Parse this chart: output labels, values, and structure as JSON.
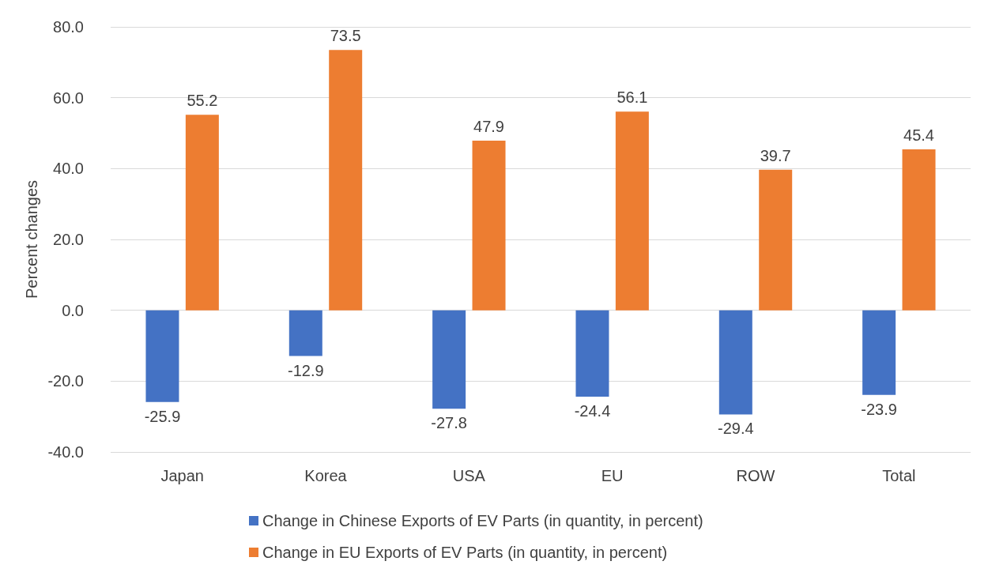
{
  "chart_data": {
    "type": "bar",
    "ylabel": "Percent changes",
    "categories": [
      "Japan",
      "Korea",
      "USA",
      "EU",
      "ROW",
      "Total"
    ],
    "series": [
      {
        "name": "Change in Chinese Exports of EV Parts (in quantity, in percent)",
        "color": "#4472c4",
        "values": [
          -25.9,
          -12.9,
          -27.8,
          -24.4,
          -29.4,
          -23.9
        ]
      },
      {
        "name": "Change in EU Exports of EV Parts (in quantity, in percent)",
        "color": "#ed7d31",
        "values": [
          55.2,
          73.5,
          47.9,
          56.1,
          39.7,
          45.4
        ]
      }
    ],
    "ylim": [
      -40,
      80
    ],
    "yticks": [
      {
        "value": -40,
        "label": "-40.0"
      },
      {
        "value": -20,
        "label": "-20.0"
      },
      {
        "value": 0,
        "label": "0.0"
      },
      {
        "value": 20,
        "label": "20.0"
      },
      {
        "value": 40,
        "label": "40.0"
      },
      {
        "value": 60,
        "label": "60.0"
      },
      {
        "value": 80,
        "label": "80.0"
      }
    ],
    "grid": "y",
    "legend": "bottom",
    "data_labels": true
  }
}
